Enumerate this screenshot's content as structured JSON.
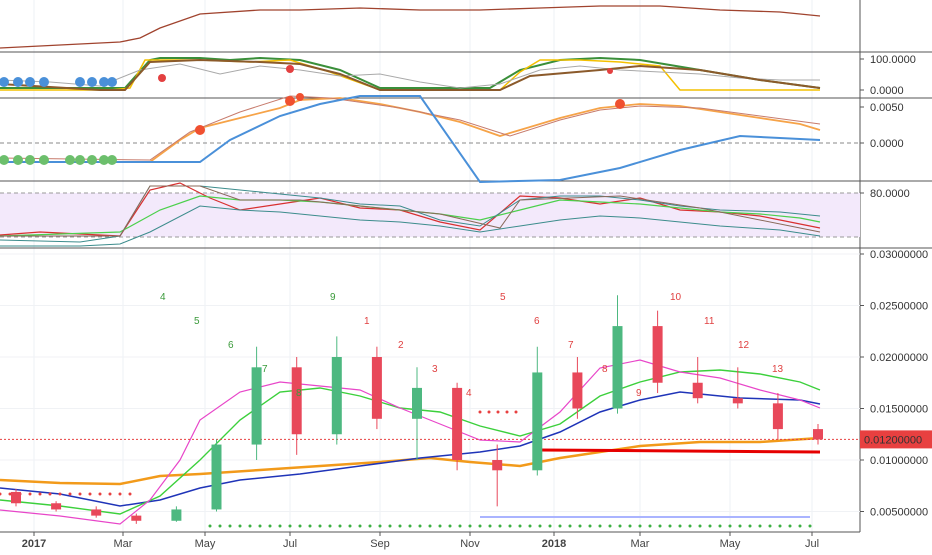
{
  "chart_data": {
    "type": "candlestick",
    "x_ticks": [
      "2017",
      "Mar",
      "May",
      "Jul",
      "Sep",
      "Nov",
      "2018",
      "Mar",
      "May",
      "Jul"
    ],
    "panes": [
      {
        "id": "pane1",
        "tick_labels": []
      },
      {
        "id": "pane2",
        "tick_labels": [
          {
            "value": 100,
            "label": "100.0000"
          },
          {
            "value": 0,
            "label": "0.0000"
          }
        ]
      },
      {
        "id": "pane3",
        "tick_labels": [
          {
            "value": 0.005,
            "label": "0.0050"
          },
          {
            "value": 0,
            "label": "0.0000"
          }
        ]
      },
      {
        "id": "pane4",
        "tick_labels": [
          {
            "value": 80,
            "label": "80.0000"
          }
        ]
      },
      {
        "id": "main",
        "ylim": [
          0.003,
          0.03
        ],
        "tick_labels": [
          {
            "value": 0.03,
            "label": "0.03000000"
          },
          {
            "value": 0.025,
            "label": "0.02500000"
          },
          {
            "value": 0.02,
            "label": "0.02000000"
          },
          {
            "value": 0.015,
            "label": "0.01500000"
          },
          {
            "value": 0.01,
            "label": "0.01000000"
          },
          {
            "value": 0.005,
            "label": "0.00500000"
          }
        ]
      }
    ],
    "last_price": {
      "value": 0.012,
      "label": "0.01200000"
    },
    "candles": [
      {
        "date": "2016-11",
        "o": 0.0069,
        "h": 0.0072,
        "l": 0.0055,
        "c": 0.0058
      },
      {
        "date": "2016-12",
        "o": 0.0058,
        "h": 0.006,
        "l": 0.005,
        "c": 0.0052
      },
      {
        "date": "2017-01",
        "o": 0.0052,
        "h": 0.0055,
        "l": 0.0044,
        "c": 0.0046
      },
      {
        "date": "2017-02",
        "o": 0.0046,
        "h": 0.0048,
        "l": 0.0038,
        "c": 0.0041
      },
      {
        "date": "2017-03",
        "o": 0.0041,
        "h": 0.0055,
        "l": 0.004,
        "c": 0.0052
      },
      {
        "date": "2017-04",
        "o": 0.0052,
        "h": 0.012,
        "l": 0.005,
        "c": 0.0115
      },
      {
        "date": "2017-05",
        "o": 0.0115,
        "h": 0.021,
        "l": 0.01,
        "c": 0.019
      },
      {
        "date": "2017-06",
        "o": 0.019,
        "h": 0.02,
        "l": 0.0105,
        "c": 0.0125
      },
      {
        "date": "2017-07",
        "o": 0.0125,
        "h": 0.022,
        "l": 0.0115,
        "c": 0.02
      },
      {
        "date": "2017-08",
        "o": 0.02,
        "h": 0.021,
        "l": 0.013,
        "c": 0.014
      },
      {
        "date": "2017-09",
        "o": 0.014,
        "h": 0.019,
        "l": 0.01,
        "c": 0.017
      },
      {
        "date": "2017-10",
        "o": 0.017,
        "h": 0.0175,
        "l": 0.009,
        "c": 0.01
      },
      {
        "date": "2017-11",
        "o": 0.01,
        "h": 0.0115,
        "l": 0.0055,
        "c": 0.009
      },
      {
        "date": "2017-12",
        "o": 0.009,
        "h": 0.021,
        "l": 0.0085,
        "c": 0.0185
      },
      {
        "date": "2018-01",
        "o": 0.0185,
        "h": 0.02,
        "l": 0.014,
        "c": 0.015
      },
      {
        "date": "2018-02",
        "o": 0.015,
        "h": 0.026,
        "l": 0.0145,
        "c": 0.023
      },
      {
        "date": "2018-03",
        "o": 0.023,
        "h": 0.0245,
        "l": 0.0165,
        "c": 0.0175
      },
      {
        "date": "2018-04",
        "o": 0.0175,
        "h": 0.02,
        "l": 0.0155,
        "c": 0.016
      },
      {
        "date": "2018-05",
        "o": 0.016,
        "h": 0.019,
        "l": 0.015,
        "c": 0.0155
      },
      {
        "date": "2018-06",
        "o": 0.0155,
        "h": 0.0165,
        "l": 0.012,
        "c": 0.013
      },
      {
        "date": "2018-07",
        "o": 0.013,
        "h": 0.0135,
        "l": 0.0115,
        "c": 0.012
      }
    ],
    "count_labels": [
      {
        "text": "4",
        "color": "green"
      },
      {
        "text": "5",
        "color": "green"
      },
      {
        "text": "6",
        "color": "green"
      },
      {
        "text": "7",
        "color": "green"
      },
      {
        "text": "8",
        "color": "green"
      },
      {
        "text": "9",
        "color": "green"
      },
      {
        "text": "1",
        "color": "red"
      },
      {
        "text": "2",
        "color": "red"
      },
      {
        "text": "3",
        "color": "red"
      },
      {
        "text": "4",
        "color": "red"
      },
      {
        "text": "5",
        "color": "red"
      },
      {
        "text": "6",
        "color": "red"
      },
      {
        "text": "7",
        "color": "red"
      },
      {
        "text": "8",
        "color": "red"
      },
      {
        "text": "9",
        "color": "red"
      },
      {
        "text": "10",
        "color": "red"
      },
      {
        "text": "11",
        "color": "red"
      },
      {
        "text": "12",
        "color": "red"
      },
      {
        "text": "13",
        "color": "red"
      }
    ]
  }
}
